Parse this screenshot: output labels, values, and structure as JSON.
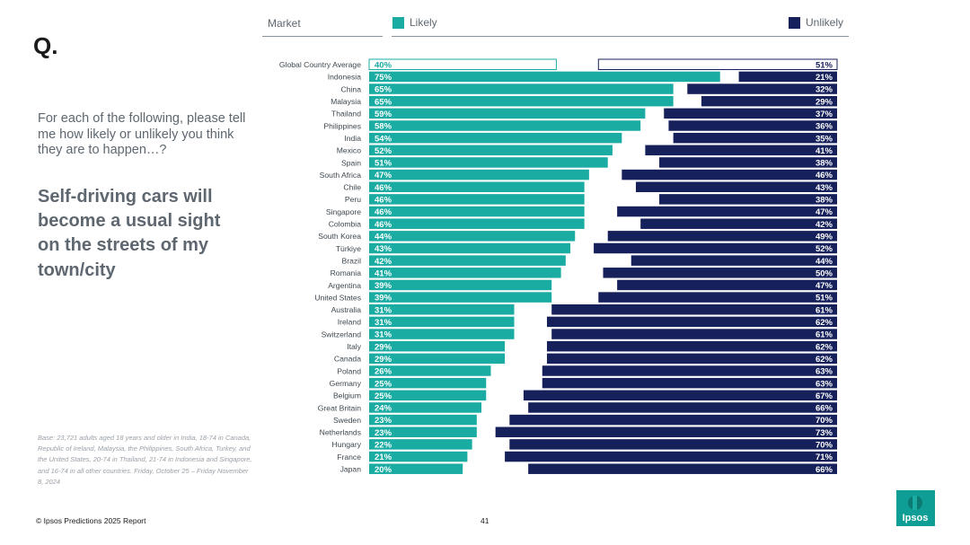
{
  "slide": {
    "q_mark": "Q.",
    "question": "For each of the following, please tell me how likely or unlikely you think they are to happen…?",
    "statement": "Self-driving cars will become a usual sight on the streets of my town/city",
    "base_note": "Base: 23,721 adults aged 18 years and older in India, 18-74 in Canada, Republic of Ireland, Malaysia, the Philippines, South Africa, Turkey, and the United States, 20-74 in Thailand, 21-74 in Indonesia and Singapore, and 16-74 in all other countries. Friday, October 25 – Friday November 8, 2024",
    "footer": "© Ipsos Predictions 2025 Report",
    "page_number": "41",
    "logo_text": "Ipsos"
  },
  "colors": {
    "likely": "#1aaba3",
    "unlikely": "#16215c",
    "text": "#5e6770"
  },
  "chart_data": {
    "type": "bar",
    "orientation": "horizontal",
    "header_label": "Market",
    "series": [
      {
        "name": "Likely",
        "values": [
          40,
          75,
          65,
          65,
          59,
          58,
          54,
          52,
          51,
          47,
          46,
          46,
          46,
          46,
          44,
          43,
          42,
          41,
          39,
          39,
          31,
          31,
          31,
          29,
          29,
          26,
          25,
          25,
          24,
          23,
          23,
          22,
          21,
          20
        ]
      },
      {
        "name": "Unlikely",
        "values": [
          51,
          21,
          32,
          29,
          37,
          36,
          35,
          41,
          38,
          46,
          43,
          38,
          47,
          42,
          49,
          52,
          44,
          50,
          47,
          51,
          61,
          62,
          61,
          62,
          62,
          63,
          63,
          67,
          66,
          70,
          73,
          70,
          71,
          66
        ]
      }
    ],
    "categories": [
      "Global Country Average",
      "Indonesia",
      "China",
      "Malaysia",
      "Thailand",
      "Philippines",
      "India",
      "Mexico",
      "Spain",
      "South Africa",
      "Chile",
      "Peru",
      "Singapore",
      "Colombia",
      "South Korea",
      "Türkiye",
      "Brazil",
      "Romania",
      "Argentina",
      "United States",
      "Australia",
      "Ireland",
      "Switzerland",
      "Italy",
      "Canada",
      "Poland",
      "Germany",
      "Belgium",
      "Great Britain",
      "Sweden",
      "Netherlands",
      "Hungary",
      "France",
      "Japan"
    ],
    "highlight_first_row": true,
    "value_suffix": "%",
    "xlim": [
      0,
      100
    ]
  }
}
